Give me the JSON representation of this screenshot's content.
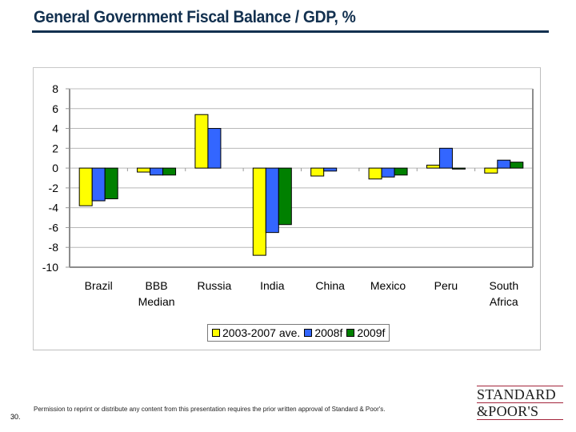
{
  "page": {
    "title": "General Government Fiscal Balance / GDP, %",
    "page_number": "30.",
    "footer_note": "Permission to reprint or distribute any content from this presentation requires the prior written approval of Standard & Poor's.",
    "logo": {
      "line1": "STANDARD",
      "line2": "&POOR'S",
      "rule_color": "#a3243b"
    }
  },
  "chart_data": {
    "type": "bar",
    "title": "General Government Fiscal Balance / GDP, %",
    "xlabel": "",
    "ylabel": "",
    "ylim": [
      -10,
      8
    ],
    "yticks": [
      8,
      6,
      4,
      2,
      0,
      -2,
      -4,
      -6,
      -8,
      -10
    ],
    "grid": true,
    "legend_position": "bottom",
    "categories": [
      [
        "Brazil"
      ],
      [
        "BBB",
        "Median"
      ],
      [
        "Russia"
      ],
      [
        "India"
      ],
      [
        "China"
      ],
      [
        "Mexico"
      ],
      [
        "Peru"
      ],
      [
        "South",
        "Africa"
      ]
    ],
    "series": [
      {
        "name": "2003-2007 ave.",
        "color": "#ffff00",
        "values": [
          -3.8,
          -0.4,
          5.4,
          -8.8,
          -0.8,
          -1.1,
          0.3,
          -0.5
        ]
      },
      {
        "name": "2008f",
        "color": "#3366ff",
        "values": [
          -3.3,
          -0.7,
          4.0,
          -6.5,
          -0.3,
          -0.9,
          2.0,
          0.8
        ]
      },
      {
        "name": "2009f",
        "color": "#008000",
        "values": [
          -3.1,
          -0.7,
          null,
          -5.7,
          null,
          -0.7,
          -0.1,
          0.6
        ]
      }
    ]
  }
}
